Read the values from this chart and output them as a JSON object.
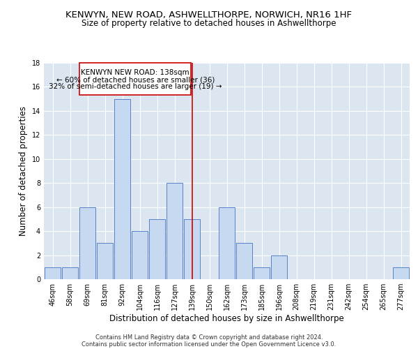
{
  "title": "KENWYN, NEW ROAD, ASHWELLTHORPE, NORWICH, NR16 1HF",
  "subtitle": "Size of property relative to detached houses in Ashwellthorpe",
  "xlabel": "Distribution of detached houses by size in Ashwellthorpe",
  "ylabel": "Number of detached properties",
  "bar_labels": [
    "46sqm",
    "58sqm",
    "69sqm",
    "81sqm",
    "92sqm",
    "104sqm",
    "116sqm",
    "127sqm",
    "139sqm",
    "150sqm",
    "162sqm",
    "173sqm",
    "185sqm",
    "196sqm",
    "208sqm",
    "219sqm",
    "231sqm",
    "242sqm",
    "254sqm",
    "265sqm",
    "277sqm"
  ],
  "bar_values": [
    1,
    1,
    6,
    3,
    15,
    4,
    5,
    8,
    5,
    0,
    6,
    3,
    1,
    2,
    0,
    0,
    0,
    0,
    0,
    0,
    1
  ],
  "bar_color": "#c6d9f1",
  "bar_edge_color": "#4472c4",
  "background_color": "#dce6f1",
  "grid_color": "#ffffff",
  "vline_color": "#cc0000",
  "annotation_line1": "KENWYN NEW ROAD: 138sqm",
  "annotation_line2": "← 60% of detached houses are smaller (36)",
  "annotation_line3": "32% of semi-detached houses are larger (19) →",
  "annotation_box_color": "#ffffff",
  "annotation_box_edge": "#cc0000",
  "ylim": [
    0,
    18
  ],
  "yticks": [
    0,
    2,
    4,
    6,
    8,
    10,
    12,
    14,
    16,
    18
  ],
  "title_fontsize": 9.5,
  "subtitle_fontsize": 8.5,
  "xlabel_fontsize": 8.5,
  "ylabel_fontsize": 8.5,
  "tick_fontsize": 7,
  "annotation_fontsize": 7.5,
  "footer_line1": "Contains HM Land Registry data © Crown copyright and database right 2024.",
  "footer_line2": "Contains public sector information licensed under the Open Government Licence v3.0.",
  "footer_fontsize": 6
}
